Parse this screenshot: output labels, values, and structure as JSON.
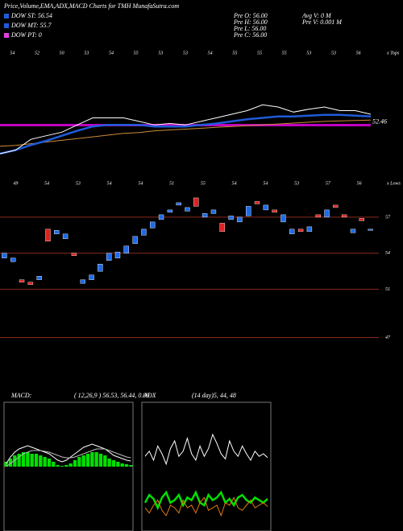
{
  "header": {
    "title": "Price,Volume,EMA,ADX,MACD Charts for TMH MunafaSutra.com",
    "legend": [
      {
        "label": "DOW ST: 56.54",
        "color": "#1e5bd8"
      },
      {
        "label": "DOW MT: 55.7",
        "color": "#1e5bd8"
      },
      {
        "label": "DOW PT: 0",
        "color": "#e040e0"
      }
    ],
    "stats": [
      "Pre  O: 56.00",
      "Pre  H: 56.00",
      "Pre  L: 56.00",
      "Pre  C: 56.00"
    ],
    "stats2": [
      "Avg  V: 0  M",
      "Pre  V: 0.001 M"
    ]
  },
  "chart_data": [
    {
      "type": "line",
      "corner_label": "x Tops",
      "top_labels": [
        "54",
        "52",
        "50",
        "53",
        "54",
        "55",
        "53",
        "53",
        "54",
        "55",
        "55",
        "55",
        "53",
        "53",
        "56"
      ],
      "ylim": [
        48.3,
        60
      ],
      "hline": 52.46,
      "hline_color": "#c000c0",
      "series": [
        {
          "color": "#ffffff",
          "values": [
            49.14,
            49.55,
            50.81,
            51.23,
            51.64,
            52.48,
            53.31,
            53.31,
            53.31,
            52.9,
            52.48,
            52.65,
            52.48,
            52.9,
            53.31,
            53.73,
            54.15,
            54.82,
            54.57,
            53.98,
            54.32,
            54.57,
            54.15,
            54.15,
            53.73
          ]
        },
        {
          "color": "#1e5bd8",
          "values": [
            49.14,
            49.55,
            50.14,
            50.64,
            51.23,
            51.81,
            52.31,
            52.48,
            52.48,
            52.48,
            52.31,
            52.31,
            52.31,
            52.48,
            52.65,
            52.9,
            53.15,
            53.31,
            53.48,
            53.48,
            53.57,
            53.65,
            53.65,
            53.57,
            53.48
          ]
        },
        {
          "color": "#d08a3a",
          "values": [
            50.0,
            50.1,
            50.3,
            50.5,
            50.7,
            50.9,
            51.1,
            51.3,
            51.5,
            51.6,
            51.8,
            51.9,
            52.0,
            52.1,
            52.2,
            52.3,
            52.4,
            52.5,
            52.6,
            52.7,
            52.8,
            52.9,
            52.95,
            53.0,
            53.05
          ]
        }
      ]
    },
    {
      "type": "candlestick",
      "corner_label": "x Lows",
      "top_labels": [
        "49",
        "54",
        "53",
        "54",
        "54",
        "51",
        "55",
        "54",
        "54",
        "53",
        "57",
        "56"
      ],
      "ylim": [
        46.3,
        60
      ],
      "yticks": [
        47,
        51,
        54,
        57
      ],
      "grid_color": "#8b2a1e",
      "up_color": "#1e6be8",
      "down_color": "#e02020",
      "open": [
        53.6,
        53.3,
        51.8,
        51.6,
        51.8,
        56.0,
        55.6,
        55.2,
        54.0,
        51.5,
        51.8,
        52.5,
        53.4,
        53.6,
        54.0,
        54.8,
        55.5,
        56.1,
        56.8,
        57.4,
        58.0,
        57.5,
        58.6,
        57.0,
        57.3,
        56.5,
        56.8,
        56.6,
        57.1,
        58.3,
        57.6,
        57.6,
        56.6,
        55.6,
        56.0,
        55.8,
        57.2,
        57.0,
        58.0,
        57.2,
        55.7,
        56.9,
        55.9
      ],
      "close": [
        54.0,
        53.6,
        51.6,
        51.4,
        52.1,
        55.0,
        55.9,
        55.6,
        53.8,
        51.8,
        52.2,
        53.1,
        54.0,
        54.1,
        54.6,
        55.4,
        56.0,
        56.6,
        57.2,
        57.6,
        58.2,
        57.8,
        57.9,
        57.3,
        57.6,
        55.8,
        57.1,
        57.0,
        57.9,
        58.1,
        58.0,
        57.4,
        57.2,
        56.0,
        55.8,
        56.2,
        57.0,
        57.6,
        57.8,
        57.0,
        56.0,
        56.7,
        56.0
      ]
    },
    {
      "type": "macd",
      "title": "MACD:",
      "subtitle": "( 12,26,9 ) 56.53, 56.44, 0.09",
      "ylim": [
        -4,
        4
      ],
      "color": "#00e000",
      "histogram": [
        0.3,
        0.5,
        0.7,
        0.8,
        0.9,
        0.9,
        0.8,
        0.8,
        0.7,
        0.6,
        0.5,
        0.3,
        0.1,
        0.05,
        0.1,
        0.2,
        0.4,
        0.6,
        0.7,
        0.8,
        0.9,
        0.9,
        0.8,
        0.7,
        0.5,
        0.4,
        0.3,
        0.2,
        0.15,
        0.1
      ],
      "series": [
        {
          "color": "#ffffff",
          "values": [
            0.2,
            0.6,
            0.9,
            1.1,
            1.2,
            1.3,
            1.2,
            1.1,
            1.0,
            0.9,
            0.8,
            0.6,
            0.4,
            0.3,
            0.4,
            0.6,
            0.8,
            1.0,
            1.2,
            1.3,
            1.4,
            1.3,
            1.2,
            1.1,
            0.9,
            0.7,
            0.6,
            0.5,
            0.4,
            0.35
          ]
        },
        {
          "color": "#bbbbbb",
          "values": [
            0.0,
            0.2,
            0.4,
            0.6,
            0.8,
            0.9,
            1.0,
            1.0,
            1.0,
            0.95,
            0.9,
            0.8,
            0.7,
            0.6,
            0.55,
            0.55,
            0.6,
            0.7,
            0.8,
            0.9,
            1.0,
            1.1,
            1.1,
            1.1,
            1.0,
            0.9,
            0.8,
            0.7,
            0.6,
            0.55
          ]
        }
      ]
    },
    {
      "type": "adx",
      "title": "ADX",
      "subtitle": "(14 day)5, 44, 48",
      "ylim": [
        0,
        100
      ],
      "series": [
        {
          "color": "#ffffff",
          "values": [
            58,
            62,
            55,
            66,
            60,
            52,
            64,
            70,
            58,
            62,
            72,
            60,
            55,
            66,
            58,
            64,
            75,
            68,
            60,
            56,
            70,
            62,
            58,
            66,
            60,
            55,
            62,
            58,
            60,
            57
          ]
        },
        {
          "color": "#00e000",
          "values": [
            22,
            28,
            25,
            18,
            26,
            30,
            22,
            24,
            28,
            20,
            26,
            24,
            30,
            22,
            20,
            28,
            24,
            26,
            30,
            22,
            25,
            20,
            26,
            28,
            24,
            22,
            26,
            24,
            22,
            25
          ]
        },
        {
          "color": "#e07a10",
          "values": [
            18,
            14,
            20,
            24,
            16,
            12,
            20,
            18,
            14,
            24,
            18,
            20,
            14,
            22,
            26,
            16,
            18,
            20,
            12,
            22,
            20,
            26,
            18,
            16,
            20,
            24,
            18,
            20,
            22,
            19
          ]
        }
      ]
    }
  ]
}
